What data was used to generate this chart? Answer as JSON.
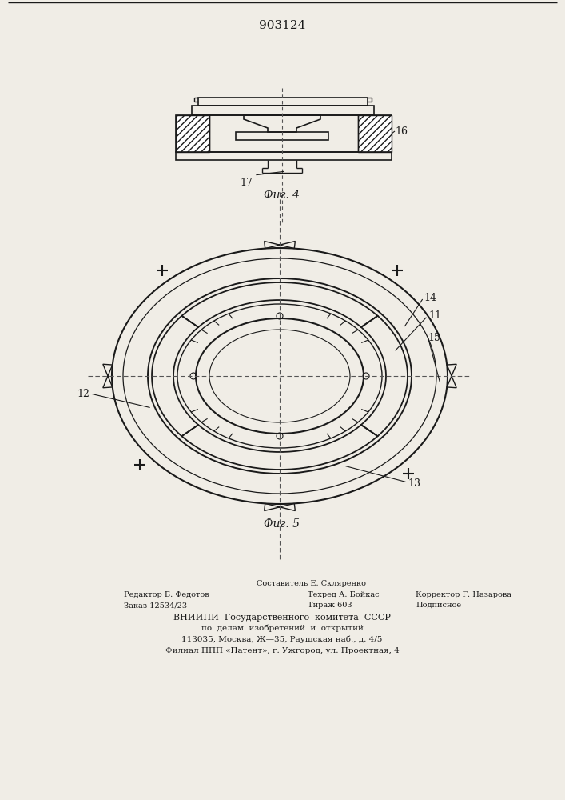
{
  "patent_number": "903124",
  "fig4_label": "Фиг. 4",
  "fig5_label": "Фиг. 5",
  "label_16": "16",
  "label_17": "17",
  "label_11": "11",
  "label_12": "12",
  "label_13": "13",
  "label_14": "14",
  "label_15": "15",
  "line_color": "#1a1a1a",
  "bg_color": "#f0ede6",
  "footer_line1": "Составитель Е. Скляренко",
  "footer_line2_left": "Редактор Б. Федотов",
  "footer_line2_mid": "Техред А. Бойкас",
  "footer_line2_right": "Корректор Г. Назарова",
  "footer_line3_left": "Заказ 12534/23",
  "footer_line3_mid": "Тираж 603",
  "footer_line3_right": "Подписное",
  "footer_line4": "ВНИИПИ  Государственного  комитета  СССР",
  "footer_line5": "по  делам  изобретений  и  открытий",
  "footer_line6": "113035, Москва, Ж—35, Раушская наб., д. 4/5",
  "footer_line7": "Филиал ППП «Патент», г. Ужгород, ул. Проектная, 4"
}
